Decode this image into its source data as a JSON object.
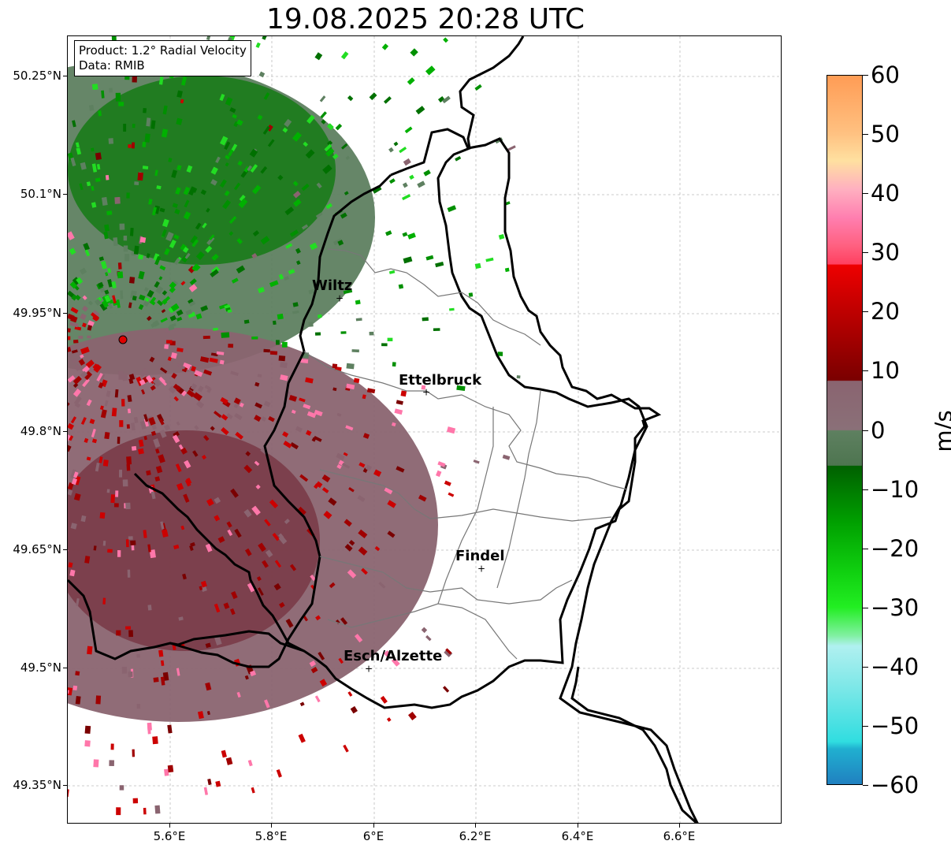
{
  "title": "19.08.2025 20:28 UTC",
  "info": {
    "product": "Product: 1.2° Radial Velocity",
    "source": "Data: RMIB"
  },
  "axes": {
    "lat_ticks": [
      "50.25°N",
      "50.1°N",
      "49.95°N",
      "49.8°N",
      "49.65°N",
      "49.5°N",
      "49.35°N"
    ],
    "lon_ticks": [
      "5.6°E",
      "5.8°E",
      "6°E",
      "6.2°E",
      "6.4°E",
      "6.6°E"
    ],
    "gridlines": true
  },
  "cities": [
    {
      "name": "Wiltz"
    },
    {
      "name": "Ettelbruck"
    },
    {
      "name": "Findel"
    },
    {
      "name": "Esch/Alzette"
    }
  ],
  "radar_marker": {
    "color": "#e00000"
  },
  "colorbar": {
    "unit": "m/s",
    "ticks": [
      "60",
      "50",
      "40",
      "30",
      "20",
      "10",
      "0",
      "−10",
      "−20",
      "−30",
      "−40",
      "−50",
      "−60"
    ],
    "range": [
      -60,
      60
    ],
    "colors": {
      "pos_high": "#ff9c55",
      "pos_pink": "#ff7fb0",
      "pos_red": "#ee0000",
      "pos_darkred": "#7a0000",
      "near_zero_pos": "#8a6470",
      "near_zero_neg": "#5e8060",
      "neg_green": "#00a000",
      "neg_bright": "#22ee22",
      "neg_cyan": "#30dde0",
      "neg_blue": "#2080c0"
    }
  }
}
